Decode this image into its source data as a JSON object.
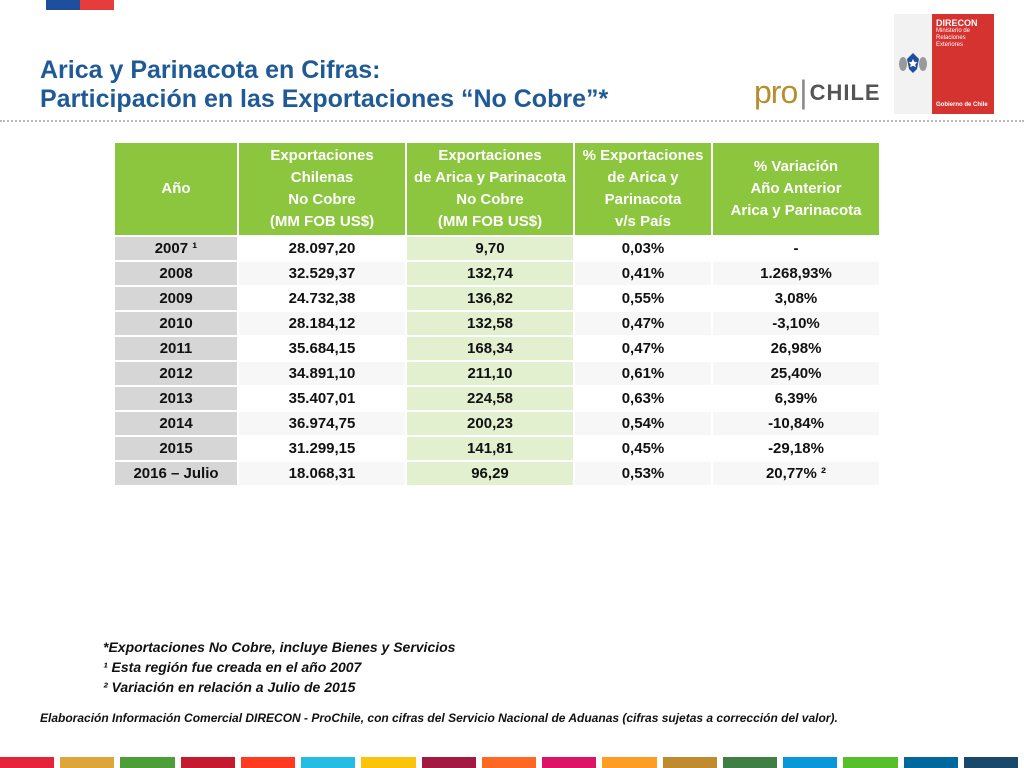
{
  "title": {
    "line1": "Arica y Parinacota en Cifras:",
    "line2": "Participación en las Exportaciones “No Cobre”*"
  },
  "brand": {
    "pro": "pro",
    "sep": "|",
    "chile": "CHILE",
    "gov_name": "DIRECON",
    "gov_sub": "Ministerio de Relaciones Exteriores",
    "gov_footer": "Gobierno de Chile",
    "colors": {
      "blue": "#1f4e9c",
      "red": "#d5332f",
      "green": "#8cc63e"
    }
  },
  "table": {
    "headers": [
      "Año",
      "Exportaciones\nChilenas\nNo Cobre\n(MM FOB US$)",
      "Exportaciones\nde Arica y Parinacota\nNo Cobre\n(MM FOB US$)",
      "% Exportaciones\nde Arica y\nParinacota\nv/s País",
      "% Variación\nAño Anterior\nArica y Parinacota"
    ],
    "rows": [
      [
        "2007 ¹",
        "28.097,20",
        "9,70",
        "0,03%",
        "-"
      ],
      [
        "2008",
        "32.529,37",
        "132,74",
        "0,41%",
        "1.268,93%"
      ],
      [
        "2009",
        "24.732,38",
        "136,82",
        "0,55%",
        "3,08%"
      ],
      [
        "2010",
        "28.184,12",
        "132,58",
        "0,47%",
        "-3,10%"
      ],
      [
        "2011",
        "35.684,15",
        "168,34",
        "0,47%",
        "26,98%"
      ],
      [
        "2012",
        "34.891,10",
        "211,10",
        "0,61%",
        "25,40%"
      ],
      [
        "2013",
        "35.407,01",
        "224,58",
        "0,63%",
        "6,39%"
      ],
      [
        "2014",
        "36.974,75",
        "200,23",
        "0,54%",
        "-10,84%"
      ],
      [
        "2015",
        "31.299,15",
        "141,81",
        "0,45%",
        "-29,18%"
      ],
      [
        "2016 – Julio",
        "18.068,31",
        "96,29",
        "0,53%",
        "20,77% ²"
      ]
    ]
  },
  "notes": [
    "*Exportaciones No Cobre, incluye Bienes y Servicios",
    "¹ Esta región fue creada en el año 2007",
    "² Variación en relación a Julio de 2015"
  ],
  "source": "Elaboración Información Comercial DIRECON - ProChile, con cifras del Servicio Nacional de Aduanas (cifras sujetas a corrección del valor).",
  "bottom_stripe_colors": [
    "#e5243b",
    "#dda63a",
    "#4c9f38",
    "#c5192d",
    "#ff3a21",
    "#26bde2",
    "#fcc30b",
    "#a21942",
    "#fd6925",
    "#dd1367",
    "#fd9d24",
    "#bf8b2e",
    "#3f7e44",
    "#0a97d9",
    "#56c02b",
    "#00689d",
    "#19486a"
  ]
}
